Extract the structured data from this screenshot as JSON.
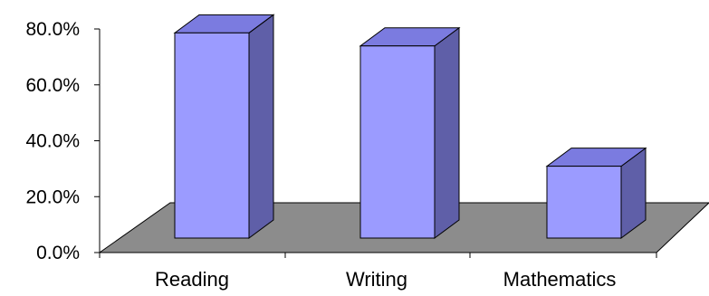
{
  "chart_data": {
    "type": "bar",
    "categories": [
      "Reading",
      "Writing",
      "Mathematics"
    ],
    "values": [
      78.5,
      73.5,
      27.5
    ],
    "y_ticks": [
      "0.0%",
      "20.0%",
      "40.0%",
      "60.0%",
      "80.0%"
    ],
    "ylim": [
      0,
      80
    ],
    "grid": false,
    "legend": "none",
    "colors": {
      "bar_front": "#9b9bff",
      "bar_top": "#7b7be0",
      "bar_side": "#5f5fa8",
      "floor": "#8c8c8c",
      "outline": "#000000"
    }
  }
}
